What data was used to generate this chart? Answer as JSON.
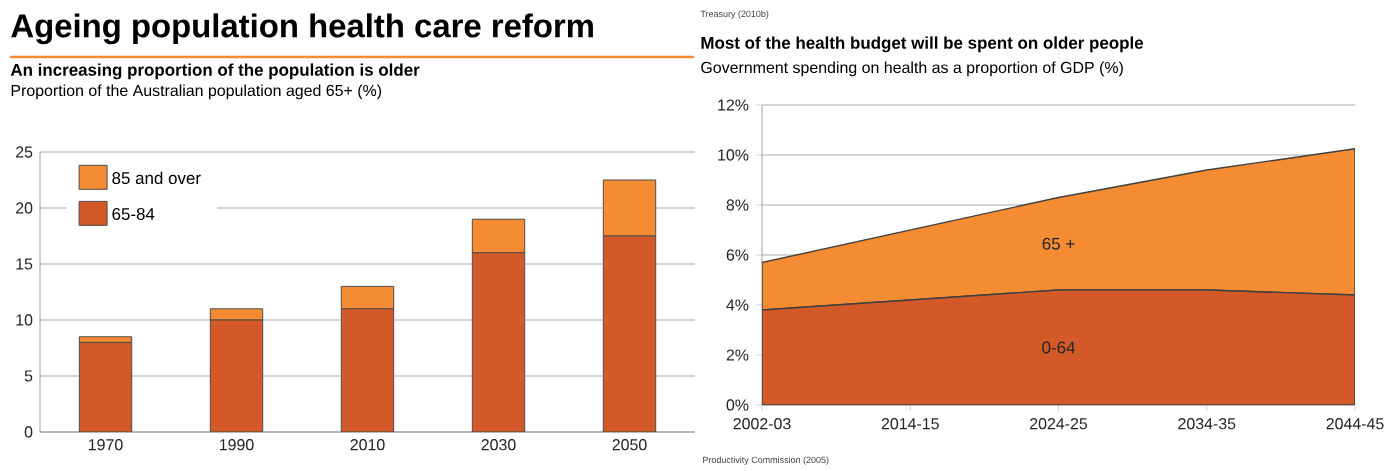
{
  "chart_data": [
    {
      "type": "bar",
      "title": "Ageing population health care reform",
      "subtitle": "An increasing proportion of the population is older",
      "ylabel": "Proportion of the Australian population aged 65+ (%)",
      "categories": [
        "1970",
        "1990",
        "2010",
        "2030",
        "2050"
      ],
      "stacked": true,
      "series": [
        {
          "name": "65-84",
          "color": "#d35a28",
          "values": [
            8,
            10,
            11,
            16,
            17.5
          ]
        },
        {
          "name": "85 and over",
          "color": "#f58b33",
          "values": [
            0.5,
            1,
            2,
            3,
            5
          ]
        }
      ],
      "ylim": [
        0,
        25
      ],
      "yticks": [
        0,
        5,
        10,
        15,
        20,
        25
      ],
      "grid": "y",
      "legend": "top left",
      "annotations": [
        "Treasury (2010b)"
      ]
    },
    {
      "type": "area",
      "title": "Most of the health budget will be spent on older people",
      "ylabel": "Government spending on health as a proportion of GDP (%)",
      "categories": [
        "2002-03",
        "2014-15",
        "2024-25",
        "2034-35",
        "2044-45"
      ],
      "stacked": true,
      "series": [
        {
          "name": "0-64",
          "color": "#d35a28",
          "values": [
            3.8,
            4.2,
            4.6,
            4.6,
            4.4
          ]
        },
        {
          "name": "65 +",
          "color": "#f58b33",
          "values": [
            1.9,
            2.8,
            3.7,
            4.8,
            5.85
          ]
        }
      ],
      "ylim": [
        0,
        12
      ],
      "yticks": [
        {
          "value": 0,
          "label": "0%"
        },
        {
          "value": 2,
          "label": "2%"
        },
        {
          "value": 4,
          "label": "4%"
        },
        {
          "value": 6,
          "label": "6%"
        },
        {
          "value": 8,
          "label": "8%"
        },
        {
          "value": 10,
          "label": "10%"
        },
        {
          "value": 12,
          "label": "12%"
        }
      ],
      "grid": "y",
      "legend": false,
      "annotations": [
        "Productivity Commission (2005)"
      ]
    }
  ]
}
